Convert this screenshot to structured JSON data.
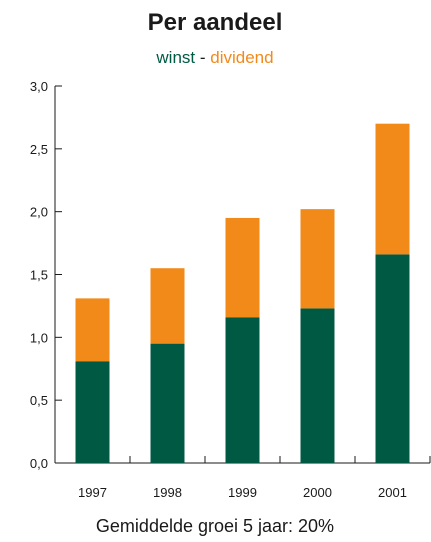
{
  "colors": {
    "winst": "#005a43",
    "dividend": "#f28a1a",
    "axis": "#1a1a1a",
    "text": "#1a1a1a"
  },
  "chart_data": {
    "type": "bar",
    "stacked": true,
    "title": "Per aandeel",
    "legend": {
      "placement": "top-center",
      "items": [
        {
          "label": "winst",
          "color": "#005a43"
        },
        {
          "separator": " - "
        },
        {
          "label": "dividend",
          "color": "#f28a1a"
        }
      ]
    },
    "categories": [
      "1997",
      "1998",
      "1999",
      "2000",
      "2001"
    ],
    "series": [
      {
        "name": "winst",
        "color": "#005a43",
        "values": [
          0.81,
          0.95,
          1.16,
          1.23,
          1.66
        ]
      },
      {
        "name": "dividend",
        "color": "#f28a1a",
        "values": [
          0.5,
          0.6,
          0.79,
          0.79,
          1.04
        ]
      }
    ],
    "ylim": [
      0,
      3.0
    ],
    "yticks": [
      "0,0",
      "0,5",
      "1,0",
      "1,5",
      "2,0",
      "2,5",
      "3,0"
    ],
    "ytick_values": [
      0,
      0.5,
      1.0,
      1.5,
      2.0,
      2.5,
      3.0
    ],
    "grid": false,
    "footnote": "Gemiddelde groei 5 jaar: 20%"
  }
}
